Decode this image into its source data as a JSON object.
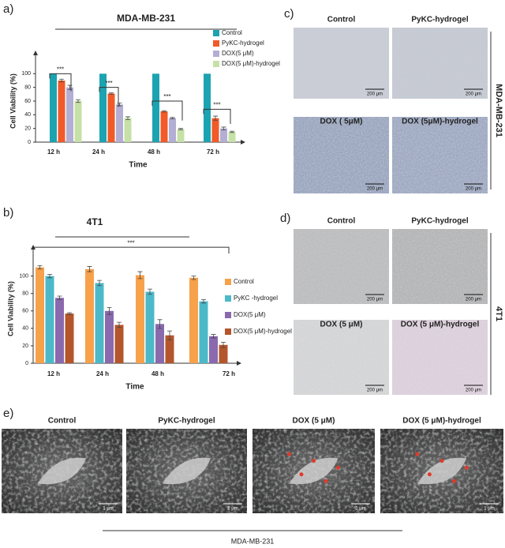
{
  "chart_data": [
    {
      "type": "bar",
      "panel": "a)",
      "title": "MDA-MB-231",
      "xlabel": "Time",
      "ylabel": "Cell Viability (%)",
      "categories": [
        "12 h",
        "24 h",
        "48 h",
        "72 h"
      ],
      "ylim": [
        0,
        120
      ],
      "yticks": [
        0,
        20,
        40,
        60,
        80,
        100
      ],
      "legend": "top-right",
      "annotations": [
        "***",
        "***",
        "***",
        "***"
      ],
      "series": [
        {
          "name": "Control",
          "color": "#1ba3b1",
          "values": [
            100,
            100,
            100,
            100
          ],
          "errors": [
            0,
            0,
            0,
            0
          ]
        },
        {
          "name": "PyKC-hydrogel",
          "color": "#f15a29",
          "values": [
            90,
            71,
            45,
            35
          ],
          "errors": [
            2,
            1,
            1,
            3
          ]
        },
        {
          "name": "DOX(5 μM)",
          "color": "#b3aed3",
          "values": [
            80,
            55,
            35,
            20
          ],
          "errors": [
            3,
            2,
            1,
            2
          ]
        },
        {
          "name": "DOX(5 μM)-hydrogel",
          "color": "#c6e1a6",
          "values": [
            60,
            35,
            19,
            15
          ],
          "errors": [
            2,
            2,
            1,
            1
          ]
        }
      ]
    },
    {
      "type": "bar",
      "panel": "b)",
      "title": "4T1",
      "xlabel": "Time",
      "ylabel": "Cell Viability (%)",
      "categories": [
        "12 h",
        "24 h",
        "48 h",
        "72 h"
      ],
      "ylim": [
        0,
        125
      ],
      "yticks": [
        0,
        20,
        40,
        60,
        80,
        100
      ],
      "legend": "right",
      "annotations": [
        "***"
      ],
      "series": [
        {
          "name": "Control",
          "color": "#f7a14b",
          "values": [
            110,
            108,
            101,
            98
          ],
          "errors": [
            2,
            3,
            4,
            2
          ]
        },
        {
          "name": "PyKC -hydrogel",
          "color": "#4cb9c9",
          "values": [
            100,
            92,
            82,
            71
          ],
          "errors": [
            2,
            3,
            3,
            2
          ]
        },
        {
          "name": "DOX(5 μM)",
          "color": "#8a69ad",
          "values": [
            75,
            60,
            45,
            31
          ],
          "errors": [
            2,
            4,
            5,
            2
          ]
        },
        {
          "name": "DOX(5 μM)-hydrogel",
          "color": "#b4562b",
          "values": [
            57,
            44,
            32,
            21
          ],
          "errors": [
            1,
            3,
            5,
            3
          ]
        }
      ]
    }
  ],
  "panel_c": {
    "label": "c)",
    "cell_line": "MDA-MB-231",
    "images": [
      "Control",
      "PyKC-hydrogel",
      "DOX ( 5μM)",
      "DOX (5μM)-hydrogel"
    ],
    "scale": [
      "200 μm",
      "200 μm",
      "200 μm",
      "200 μm"
    ]
  },
  "panel_d": {
    "label": "d)",
    "cell_line": "4T1",
    "images": [
      "Control",
      "PyKC-hydrogel",
      "DOX (5 μM)",
      "DOX (5 μM)-hydrogel"
    ],
    "scale": [
      "200 μm",
      "200 μm",
      "200 μm",
      "200 μm"
    ]
  },
  "panel_e": {
    "label": "e)",
    "cell_line": "MDA-MB-231",
    "images": [
      "Control",
      "PyKC-hydrogel",
      "DOX (5 μM)",
      "DOX (5 μM)-hydrogel"
    ],
    "scale": [
      "1 μm",
      "1 μm",
      "1 μm",
      "1 μm"
    ]
  }
}
